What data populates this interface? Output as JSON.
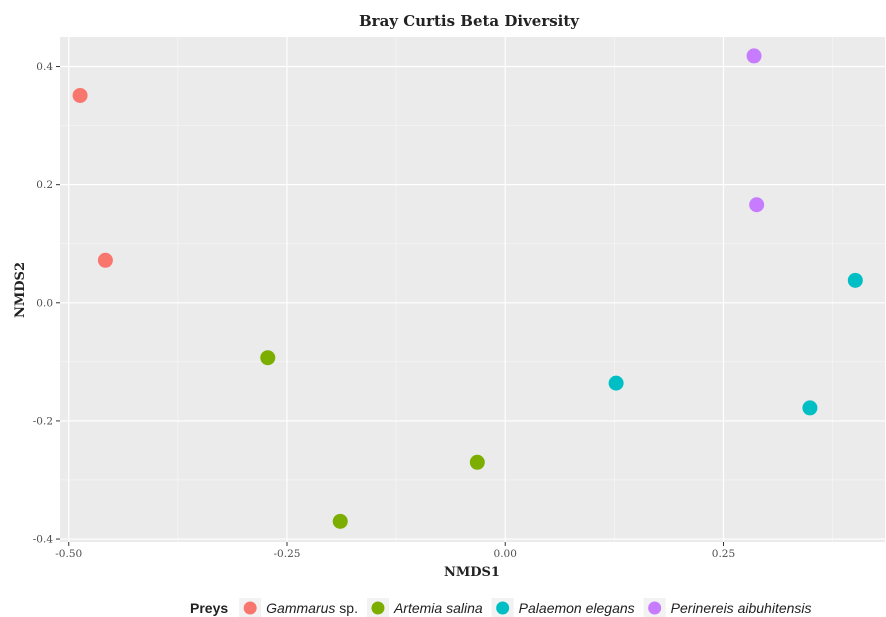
{
  "chart_data": {
    "type": "scatter",
    "title": "Bray Curtis Beta Diversity",
    "xlabel": "NMDS1",
    "ylabel": "NMDS2",
    "xlim": [
      -0.51,
      0.435
    ],
    "ylim": [
      -0.405,
      0.45
    ],
    "x_ticks": [
      -0.5,
      -0.25,
      0.0,
      0.25
    ],
    "x_tick_labels": [
      "-0.50",
      "-0.25",
      "0.00",
      "0.25"
    ],
    "y_ticks": [
      -0.4,
      -0.2,
      0.0,
      0.2,
      0.4
    ],
    "y_tick_labels": [
      "-0.4",
      "-0.2",
      "0.0",
      "0.2",
      "0.4"
    ],
    "grid": true,
    "legend_title": "Preys",
    "legend_position": "bottom",
    "series": [
      {
        "name": "Gammarus sp.",
        "name_italic": "Gammarus",
        "name_plain": " sp.",
        "color": "#F8766D",
        "points": [
          {
            "x": -0.487,
            "y": 0.351
          },
          {
            "x": -0.458,
            "y": 0.072
          }
        ]
      },
      {
        "name": "Artemia salina",
        "name_italic": "Artemia salina",
        "name_plain": "",
        "color": "#7CAE00",
        "points": [
          {
            "x": -0.272,
            "y": -0.093
          },
          {
            "x": -0.189,
            "y": -0.37
          },
          {
            "x": -0.032,
            "y": -0.27
          }
        ]
      },
      {
        "name": "Palaemon elegans",
        "name_italic": "Palaemon elegans",
        "name_plain": "",
        "color": "#00BFC4",
        "points": [
          {
            "x": 0.127,
            "y": -0.136
          },
          {
            "x": 0.349,
            "y": -0.178
          },
          {
            "x": 0.401,
            "y": 0.038
          }
        ]
      },
      {
        "name": "Perinereis aibuhitensis",
        "name_italic": "Perinereis aibuhitensis",
        "name_plain": "",
        "color": "#C77CFF",
        "points": [
          {
            "x": 0.285,
            "y": 0.418
          },
          {
            "x": 0.288,
            "y": 0.166
          }
        ]
      }
    ]
  }
}
